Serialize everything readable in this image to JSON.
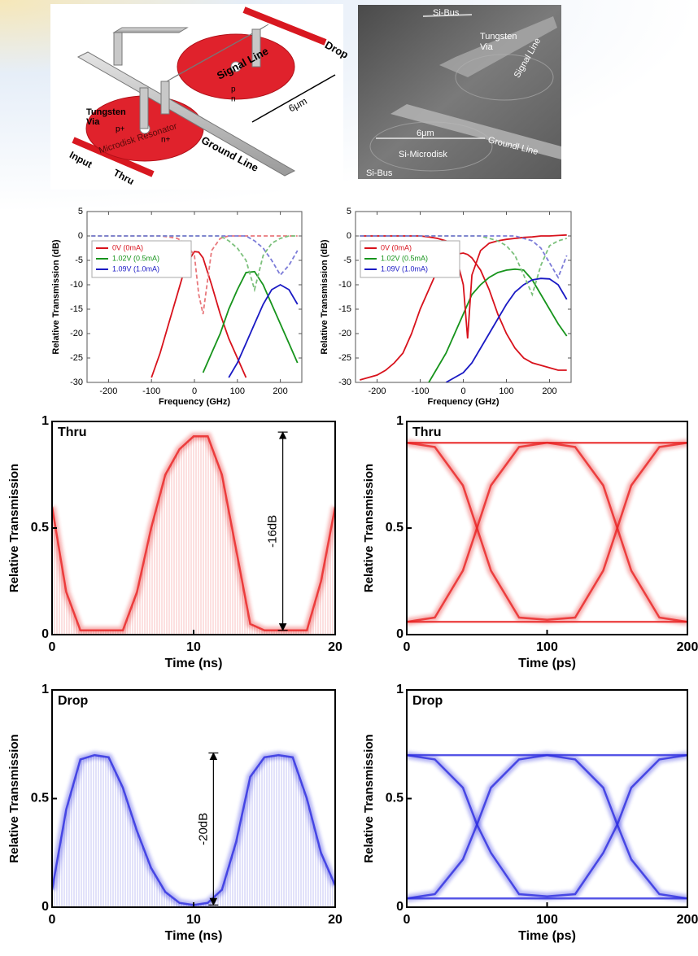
{
  "schematic": {
    "drop": "Drop",
    "signal_line": "Signal Line",
    "width": "6μm",
    "p": "p",
    "n": "n",
    "via_1": "Tungsten",
    "via_2": "Via",
    "p_plus": "p+",
    "n_plus": "n+",
    "resonator": "Microdisk Resonator",
    "ground_line": "Ground Line",
    "input": "Input",
    "thru": "Thru"
  },
  "sem": {
    "bus_top": "Si-Bus",
    "via_1": "Tungsten",
    "via_2": "Via",
    "signal_line": "Signal Line",
    "width": "6μm",
    "ground_line": "Groundl Line",
    "microdisk": "Si-Microdisk",
    "bus_bottom": "Si-Bus"
  },
  "chart_data": [
    {
      "type": "line",
      "xlabel": "Frequency (GHz)",
      "ylabel": "Relative Transmission (dB)",
      "x": [
        -240,
        -220,
        -200,
        -180,
        -160,
        -140,
        -120,
        -100,
        -80,
        -60,
        -40,
        -20,
        0,
        10,
        20,
        40,
        60,
        80,
        100,
        120,
        140,
        160,
        180,
        200,
        220,
        240
      ],
      "xlim": [
        -250,
        250
      ],
      "xticks": [
        -200,
        -100,
        0,
        100,
        200
      ],
      "ylim": [
        -30,
        5
      ],
      "yticks": [
        5,
        0,
        -5,
        -10,
        -15,
        -20,
        -25,
        -30
      ],
      "legend": "upper left",
      "series": [
        {
          "name": "0V (0mA)",
          "color": "#d8121c",
          "values": [
            null,
            null,
            null,
            null,
            null,
            null,
            null,
            -29,
            -24,
            -18,
            -12,
            -6,
            -3.2,
            -3.3,
            -4.5,
            -10,
            -16,
            -21,
            -25,
            -29,
            null,
            null,
            null,
            null,
            null,
            null
          ]
        },
        {
          "name": "1.02V (0.5mA)",
          "color": "#17941c",
          "values": [
            null,
            null,
            null,
            null,
            null,
            null,
            null,
            null,
            null,
            null,
            null,
            null,
            null,
            null,
            -28,
            -24,
            -20,
            -15,
            -11,
            -7.5,
            -7.3,
            -10,
            -14,
            -18,
            -22,
            -26
          ]
        },
        {
          "name": "1.09V (1.0mA)",
          "color": "#1a1ac4",
          "values": [
            null,
            null,
            null,
            null,
            null,
            null,
            null,
            null,
            null,
            null,
            null,
            null,
            null,
            null,
            null,
            null,
            null,
            -29,
            -26,
            -22,
            -18,
            -14,
            -11,
            -10,
            -11,
            -14
          ]
        },
        {
          "color": "#e8787c",
          "dash": true,
          "values": [
            0,
            0,
            0,
            0,
            0,
            0,
            0,
            0,
            0,
            -0.2,
            -0.5,
            -1.5,
            -4,
            -12,
            -16,
            -3,
            -0.5,
            0,
            0,
            0,
            0,
            0,
            0,
            0,
            0,
            0
          ]
        },
        {
          "color": "#7cc07c",
          "dash": true,
          "values": [
            0,
            0,
            0,
            0,
            0,
            0,
            0,
            0,
            0,
            0,
            0,
            0,
            0,
            0,
            0,
            0,
            0,
            -1,
            -2.5,
            -5,
            -11,
            -4,
            -1.5,
            -0.5,
            0,
            0
          ]
        },
        {
          "color": "#7c7cd8",
          "dash": true,
          "values": [
            0,
            0,
            0,
            0,
            0,
            0,
            0,
            0,
            0,
            0,
            0,
            0,
            0,
            0,
            0,
            0,
            0,
            0,
            0,
            0,
            -1,
            -2.5,
            -5,
            -8,
            -6,
            -3
          ]
        }
      ]
    },
    {
      "type": "line",
      "xlabel": "Frequency (GHz)",
      "ylabel": "Relative Transmission (dB)",
      "x": [
        -240,
        -220,
        -200,
        -180,
        -160,
        -140,
        -120,
        -100,
        -80,
        -60,
        -40,
        -20,
        0,
        10,
        20,
        40,
        60,
        80,
        100,
        120,
        140,
        160,
        180,
        200,
        220,
        240
      ],
      "xlim": [
        -250,
        250
      ],
      "xticks": [
        -200,
        -100,
        0,
        100,
        200
      ],
      "ylim": [
        -30,
        5
      ],
      "yticks": [
        5,
        0,
        -5,
        -10,
        -15,
        -20,
        -25,
        -30
      ],
      "legend": "upper left",
      "series": [
        {
          "name": "0V (0mA)",
          "color": "#d8121c",
          "values": [
            -29.5,
            -29,
            -28.5,
            -27.5,
            -26,
            -24,
            -20,
            -15,
            -11,
            -7,
            -5,
            -3.8,
            -3.5,
            -3.8,
            -4.5,
            -7,
            -11,
            -16,
            -20,
            -23,
            -25,
            -26,
            -26.5,
            -27,
            -27.5,
            -27.5
          ]
        },
        {
          "name": "1.02V (0.5mA)",
          "color": "#17941c",
          "values": [
            null,
            null,
            null,
            null,
            null,
            null,
            null,
            null,
            -30,
            -27,
            -24,
            -20,
            -16,
            -14,
            -12,
            -10,
            -8.5,
            -7.5,
            -7,
            -6.8,
            -7,
            -9,
            -12,
            -15,
            -18,
            -20.5
          ]
        },
        {
          "name": "1.09V (1.0mA)",
          "color": "#1a1ac4",
          "values": [
            null,
            null,
            null,
            null,
            null,
            null,
            null,
            null,
            null,
            null,
            -30,
            -29,
            -28,
            -27,
            -26,
            -23,
            -20,
            -17,
            -14,
            -11.5,
            -10,
            -9,
            -8.7,
            -8.8,
            -10,
            -13
          ]
        },
        {
          "color": "#d8121c",
          "values": [
            0,
            0,
            0,
            0,
            0,
            0,
            0,
            0,
            -0.2,
            -0.5,
            -1,
            -3,
            -10,
            -21,
            -8,
            -3,
            -1.5,
            -1,
            -0.7,
            -0.5,
            -0.3,
            -0.2,
            0,
            0,
            0.1,
            0.2
          ]
        },
        {
          "color": "#7cc07c",
          "dash": true,
          "values": [
            0,
            0,
            0,
            0,
            0,
            0,
            0,
            0,
            0,
            0,
            0,
            0,
            0,
            0,
            0,
            0,
            -0.5,
            -1,
            -2,
            -4,
            -8,
            -12,
            -6,
            -2,
            -1,
            -0.5
          ]
        },
        {
          "color": "#7c7cd8",
          "dash": true,
          "values": [
            0,
            0,
            0,
            0,
            0,
            0,
            0,
            0,
            0,
            0,
            0,
            0,
            0,
            0,
            0,
            0,
            0,
            0,
            0,
            0,
            -0.5,
            -1,
            -2.5,
            -5.5,
            -8.5,
            -4
          ]
        }
      ]
    },
    {
      "type": "eye",
      "label": "Thru",
      "xlabel": "Time (ns)",
      "ylabel": "Relative Transmission",
      "color": "#e82020",
      "fill": true,
      "x": [
        0,
        1,
        2,
        5,
        6,
        7,
        8,
        9,
        10,
        11,
        12,
        13,
        14,
        15,
        18,
        19,
        20
      ],
      "xlim": [
        0,
        20
      ],
      "xticks": [
        0,
        10,
        20
      ],
      "ylim": [
        0,
        1
      ],
      "yticks": [
        0,
        0.5,
        1
      ],
      "series": [
        {
          "values": [
            0.6,
            0.2,
            0.02,
            0.02,
            0.2,
            0.5,
            0.75,
            0.87,
            0.93,
            0.93,
            0.75,
            0.4,
            0.05,
            0.02,
            0.02,
            0.25,
            0.6
          ]
        }
      ],
      "annotation": {
        "text": "-16dB",
        "x": 16.3,
        "from": 0.02,
        "to": 0.95
      }
    },
    {
      "type": "eye",
      "label": "Thru",
      "xlabel": "Time (ps)",
      "ylabel": "Relative Transmission",
      "color": "#e82020",
      "x": [
        0,
        20,
        40,
        50,
        60,
        80,
        100,
        120,
        140,
        150,
        160,
        180,
        200
      ],
      "xlim": [
        0,
        200
      ],
      "xticks": [
        0,
        100,
        200
      ],
      "ylim": [
        0,
        1
      ],
      "yticks": [
        0,
        0.5,
        1
      ],
      "series": [
        {
          "values": [
            0.9,
            0.88,
            0.7,
            0.5,
            0.3,
            0.08,
            0.07,
            0.08,
            0.3,
            0.5,
            0.7,
            0.88,
            0.9
          ]
        },
        {
          "values": [
            0.06,
            0.08,
            0.3,
            0.5,
            0.7,
            0.88,
            0.9,
            0.88,
            0.7,
            0.5,
            0.3,
            0.08,
            0.06
          ]
        },
        {
          "values": [
            0.9,
            0.9,
            0.9,
            0.9,
            0.9,
            0.9,
            0.9,
            0.9,
            0.9,
            0.9,
            0.9,
            0.9,
            0.9
          ]
        },
        {
          "values": [
            0.06,
            0.06,
            0.06,
            0.06,
            0.06,
            0.06,
            0.06,
            0.06,
            0.06,
            0.06,
            0.06,
            0.06,
            0.06
          ]
        }
      ]
    },
    {
      "type": "eye",
      "label": "Drop",
      "xlabel": "Time (ns)",
      "ylabel": "Relative Transmission",
      "color": "#2a2ae0",
      "fill": true,
      "x": [
        0,
        1,
        2,
        3,
        4,
        5,
        6,
        7,
        8,
        9,
        10,
        11,
        12,
        13,
        14,
        15,
        16,
        17,
        18,
        19,
        20
      ],
      "xlim": [
        0,
        20
      ],
      "xticks": [
        0,
        10,
        20
      ],
      "ylim": [
        0,
        1
      ],
      "yticks": [
        0,
        0.5,
        1
      ],
      "series": [
        {
          "values": [
            0.08,
            0.45,
            0.68,
            0.7,
            0.69,
            0.55,
            0.35,
            0.18,
            0.07,
            0.02,
            0.01,
            0.02,
            0.08,
            0.3,
            0.6,
            0.69,
            0.7,
            0.69,
            0.5,
            0.25,
            0.1
          ]
        }
      ],
      "annotation": {
        "text": "-20dB",
        "x": 11.4,
        "from": 0.01,
        "to": 0.71
      }
    },
    {
      "type": "eye",
      "label": "Drop",
      "xlabel": "Time (ps)",
      "ylabel": "Relative Transmission",
      "color": "#2a2ae0",
      "x": [
        0,
        20,
        40,
        50,
        60,
        80,
        100,
        120,
        140,
        150,
        160,
        180,
        200
      ],
      "xlim": [
        0,
        200
      ],
      "xticks": [
        0,
        100,
        200
      ],
      "ylim": [
        0,
        1
      ],
      "yticks": [
        0,
        0.5,
        1
      ],
      "series": [
        {
          "values": [
            0.7,
            0.68,
            0.55,
            0.38,
            0.25,
            0.06,
            0.05,
            0.06,
            0.25,
            0.38,
            0.55,
            0.68,
            0.7
          ]
        },
        {
          "values": [
            0.04,
            0.06,
            0.22,
            0.38,
            0.55,
            0.68,
            0.7,
            0.68,
            0.55,
            0.38,
            0.22,
            0.06,
            0.04
          ]
        },
        {
          "values": [
            0.7,
            0.7,
            0.7,
            0.7,
            0.7,
            0.7,
            0.7,
            0.7,
            0.7,
            0.7,
            0.7,
            0.7,
            0.7
          ]
        },
        {
          "values": [
            0.04,
            0.04,
            0.04,
            0.04,
            0.04,
            0.04,
            0.04,
            0.04,
            0.04,
            0.04,
            0.04,
            0.04,
            0.04
          ]
        }
      ]
    }
  ]
}
